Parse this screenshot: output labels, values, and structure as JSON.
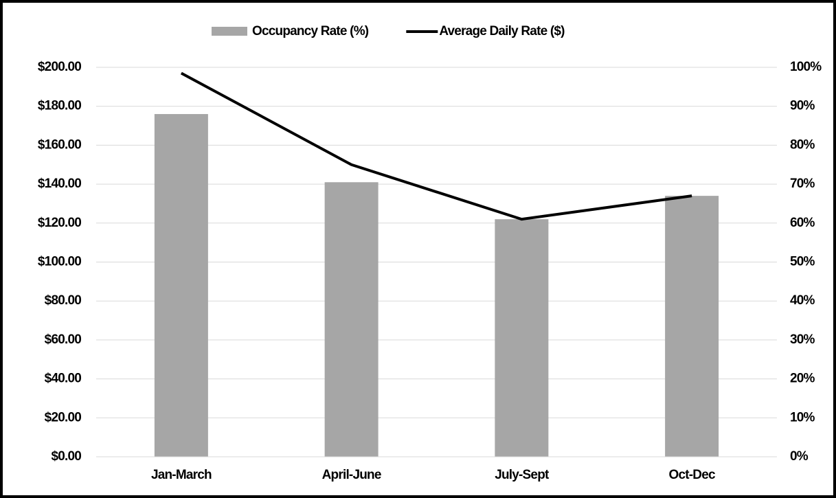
{
  "chart_data": {
    "type": "combo",
    "categories": [
      "Jan-March",
      "April-June",
      "July-Sept",
      "Oct-Dec"
    ],
    "series": [
      {
        "name": "Occupancy Rate (%)",
        "type": "bar",
        "axis": "y2",
        "color": "#a6a6a6",
        "values": [
          88,
          70.5,
          61,
          67
        ]
      },
      {
        "name": "Average Daily Rate ($)",
        "type": "line",
        "axis": "y",
        "color": "#000000",
        "values": [
          197,
          150,
          122,
          134
        ]
      }
    ],
    "ylim": [
      0,
      200
    ],
    "yticks": [
      {
        "value": 0,
        "label": "$0.00"
      },
      {
        "value": 20,
        "label": "$20.00"
      },
      {
        "value": 40,
        "label": "$40.00"
      },
      {
        "value": 60,
        "label": "$60.00"
      },
      {
        "value": 80,
        "label": "$80.00"
      },
      {
        "value": 100,
        "label": "$100.00"
      },
      {
        "value": 120,
        "label": "$120.00"
      },
      {
        "value": 140,
        "label": "$140.00"
      },
      {
        "value": 160,
        "label": "$160.00"
      },
      {
        "value": 180,
        "label": "$180.00"
      },
      {
        "value": 200,
        "label": "$200.00"
      }
    ],
    "y2lim": [
      0,
      100
    ],
    "y2ticks": [
      {
        "value": 0,
        "label": "0%"
      },
      {
        "value": 10,
        "label": "10%"
      },
      {
        "value": 20,
        "label": "20%"
      },
      {
        "value": 30,
        "label": "30%"
      },
      {
        "value": 40,
        "label": "40%"
      },
      {
        "value": 50,
        "label": "50%"
      },
      {
        "value": 60,
        "label": "60%"
      },
      {
        "value": 70,
        "label": "70%"
      },
      {
        "value": 80,
        "label": "80%"
      },
      {
        "value": 90,
        "label": "90%"
      },
      {
        "value": 100,
        "label": "100%"
      }
    ],
    "grid": true,
    "legend": "top"
  }
}
